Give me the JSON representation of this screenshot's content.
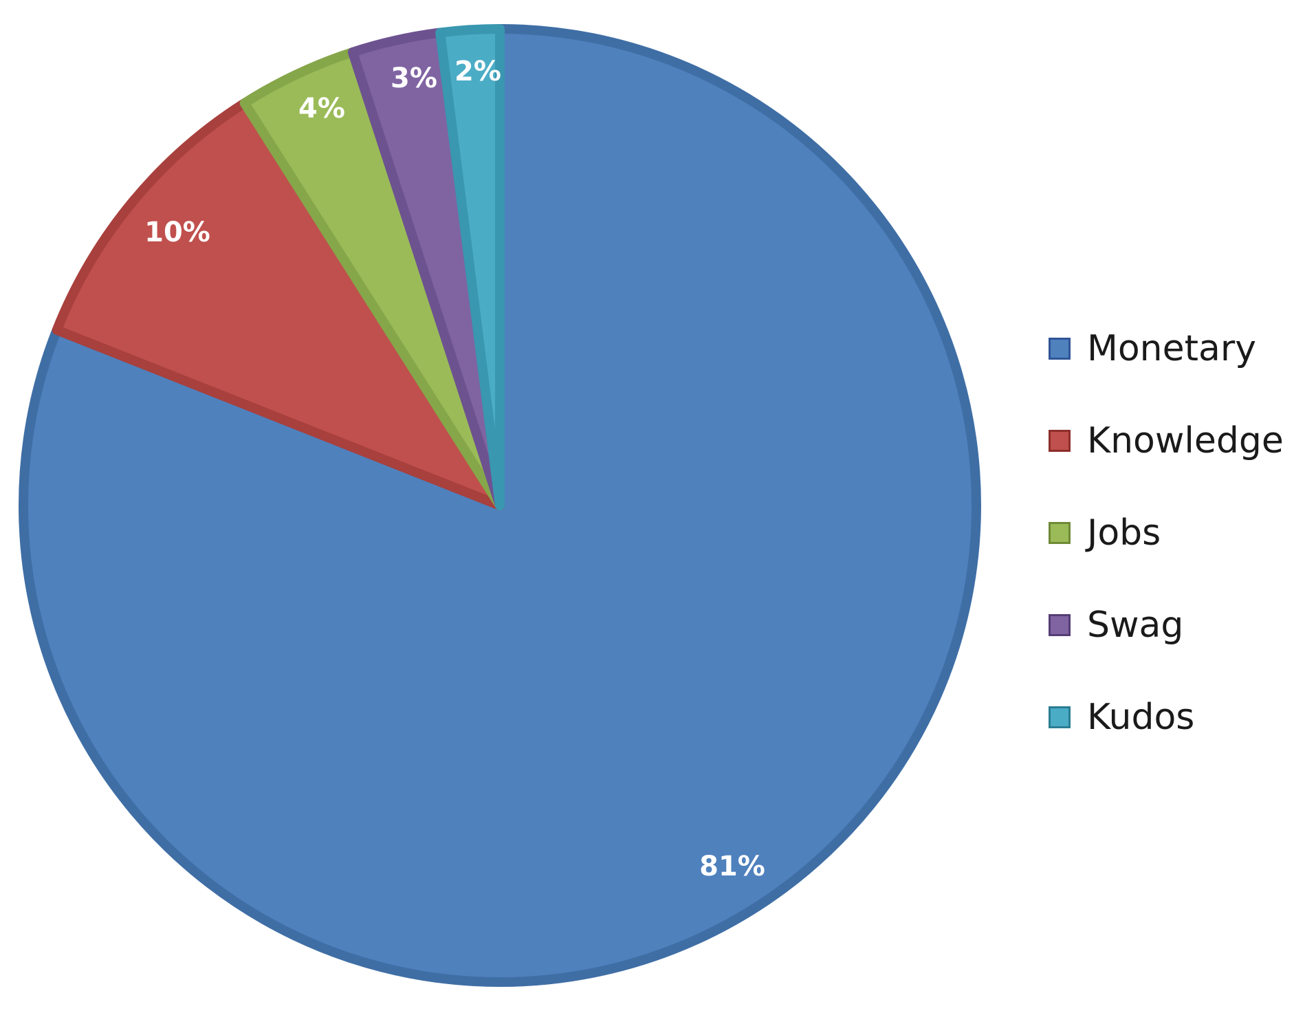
{
  "chart_data": {
    "type": "pie",
    "title": "",
    "start_angle_deg": 0,
    "direction": "clockwise",
    "legend_position": "right",
    "slices": [
      {
        "label": "Monetary",
        "value": 81,
        "value_label": "81%",
        "color": "#4f81bd",
        "edge": "#3f6ea5",
        "swatch_border": "#2f5597"
      },
      {
        "label": "Knowledge",
        "value": 10,
        "value_label": "10%",
        "color": "#c0504d",
        "edge": "#a8403d",
        "swatch_border": "#8c2e2b"
      },
      {
        "label": "Jobs",
        "value": 4,
        "value_label": "4%",
        "color": "#9bbb59",
        "edge": "#86a64a",
        "swatch_border": "#6e8a36"
      },
      {
        "label": "Swag",
        "value": 3,
        "value_label": "3%",
        "color": "#8064a2",
        "edge": "#6d5290",
        "swatch_border": "#553d74"
      },
      {
        "label": "Kudos",
        "value": 2,
        "value_label": "2%",
        "color": "#4bacc6",
        "edge": "#3a97b0",
        "swatch_border": "#2a7d93"
      }
    ]
  }
}
